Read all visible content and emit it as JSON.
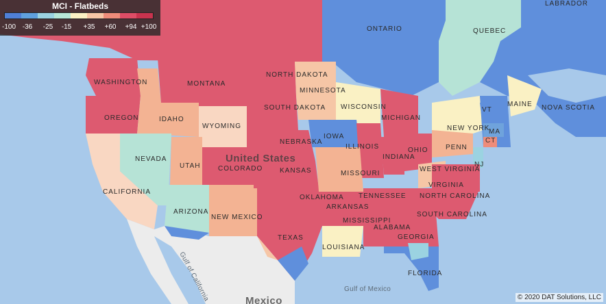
{
  "legend": {
    "title": "MCI - Flatbeds",
    "ticks": [
      "-100",
      "-36",
      "-25",
      "-15",
      "+35",
      "+60",
      "+94",
      "+100"
    ],
    "colors": [
      "#4f7fd6",
      "#5fa0dd",
      "#9bd3e1",
      "#b7e7d7",
      "#faf1c4",
      "#f6c6a6",
      "#ee8c7a",
      "#dd4d66",
      "#c8334e"
    ]
  },
  "labels": {
    "canada": [
      "ONTARIO",
      "QUEBEC",
      "LABRADOR",
      "NOVA SCOTIA"
    ],
    "states": [
      "WASHINGTON",
      "MONTANA",
      "NORTH DAKOTA",
      "MINNESOTA",
      "OREGON",
      "IDAHO",
      "SOUTH DAKOTA",
      "WISCONSIN",
      "MICHIGAN",
      "WYOMING",
      "NEBRASKA",
      "IOWA",
      "NEVADA",
      "UTAH",
      "COLORADO",
      "KANSAS",
      "ILLINOIS",
      "INDIANA",
      "OHIO",
      "PENN",
      "NEW YORK",
      "MAINE",
      "VT",
      "MA",
      "CT",
      "NJ",
      "WEST VIRGINIA",
      "VIRGINIA",
      "MISSOURI",
      "CALIFORNIA",
      "ARIZONA",
      "NEW MEXICO",
      "OKLAHOMA",
      "ARKANSAS",
      "TENNESSEE",
      "NORTH CAROLINA",
      "SOUTH CAROLINA",
      "ALABAMA",
      "GEORGIA",
      "MISSISSIPPI",
      "LOUISIANA",
      "TEXAS",
      "FLORIDA"
    ],
    "country": "United States",
    "mexico": "Mexico",
    "gulf_california": "Gulf of California",
    "gulf_mexico": "Gulf of Mexico"
  },
  "credit": "© 2020 DAT Solutions, LLC"
}
